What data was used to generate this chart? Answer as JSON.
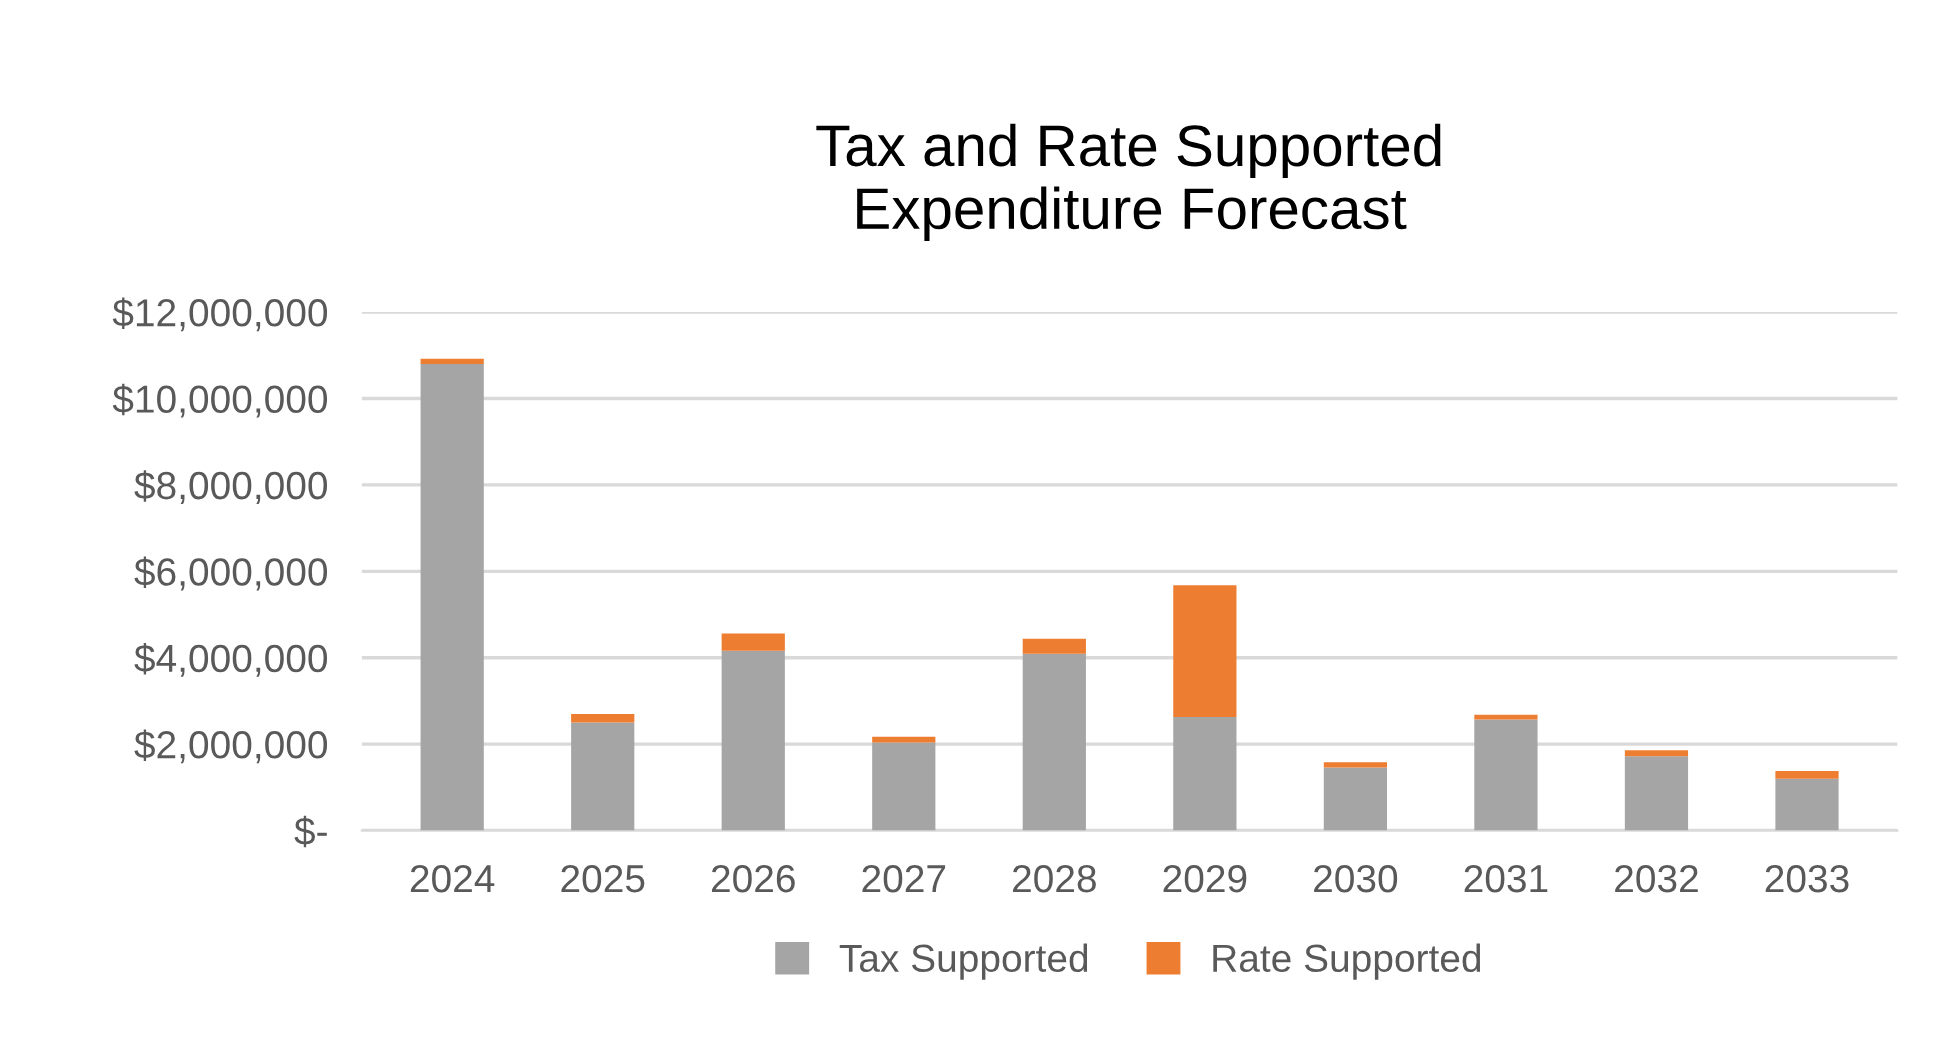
{
  "chart_data": {
    "type": "bar",
    "title": "Tax and Rate Supported\nExpenditure Forecast",
    "categories": [
      "2024",
      "2025",
      "2026",
      "2027",
      "2028",
      "2029",
      "2030",
      "2031",
      "2032",
      "2033"
    ],
    "stacked": true,
    "series": [
      {
        "name": "Tax Supported",
        "color": "#a5a5a5",
        "values": [
          10800000,
          2500000,
          4160000,
          2040000,
          4090000,
          2630000,
          1460000,
          2570000,
          1720000,
          1200000
        ]
      },
      {
        "name": "Rate Supported",
        "color": "#ed7d31",
        "values": [
          120000,
          200000,
          400000,
          130000,
          350000,
          3050000,
          120000,
          110000,
          140000,
          180000
        ]
      }
    ],
    "ylim": [
      0,
      12000000
    ],
    "yticks": [
      {
        "value": 0,
        "label": "$-"
      },
      {
        "value": 2000000,
        "label": "$2,000,000"
      },
      {
        "value": 4000000,
        "label": "$4,000,000"
      },
      {
        "value": 6000000,
        "label": "$6,000,000"
      },
      {
        "value": 8000000,
        "label": "$8,000,000"
      },
      {
        "value": 10000000,
        "label": "$10,000,000"
      },
      {
        "value": 12000000,
        "label": "$12,000,000"
      }
    ],
    "grid": "y",
    "legend": "bottom"
  }
}
